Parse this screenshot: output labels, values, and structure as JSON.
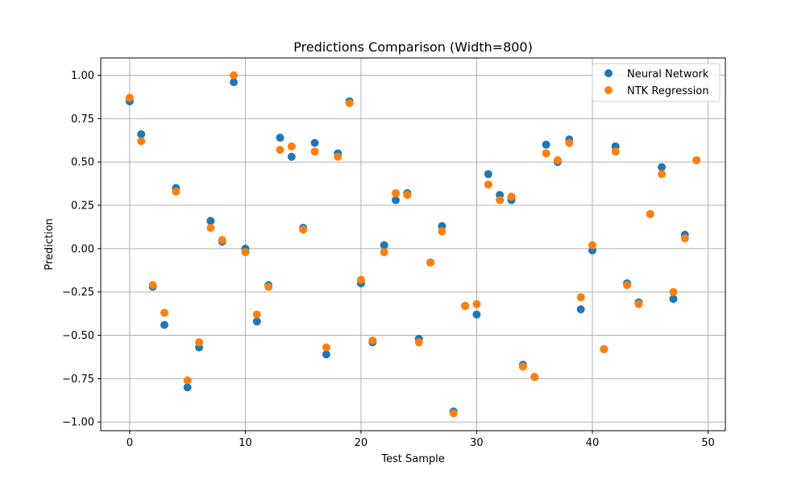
{
  "chart_data": {
    "type": "scatter",
    "title": "Predictions Comparison (Width=800)",
    "xlabel": "Test Sample",
    "ylabel": "Prediction",
    "xlim": [
      -2.5,
      51.5
    ],
    "ylim": [
      -1.05,
      1.1
    ],
    "xticks": [
      0,
      10,
      20,
      30,
      40,
      50
    ],
    "yticks": [
      -1.0,
      -0.75,
      -0.5,
      -0.25,
      0.0,
      0.25,
      0.5,
      0.75,
      1.0
    ],
    "ytick_labels": [
      "−1.00",
      "−0.75",
      "−0.50",
      "−0.25",
      "0.00",
      "0.25",
      "0.50",
      "0.75",
      "1.00"
    ],
    "grid": true,
    "legend_position": "top-right",
    "x": [
      0,
      1,
      2,
      3,
      4,
      5,
      6,
      7,
      8,
      9,
      10,
      11,
      12,
      13,
      14,
      15,
      16,
      17,
      18,
      19,
      20,
      21,
      22,
      23,
      24,
      25,
      26,
      27,
      28,
      29,
      30,
      31,
      32,
      33,
      34,
      35,
      36,
      37,
      38,
      39,
      40,
      41,
      42,
      43,
      44,
      45,
      46,
      47,
      48,
      49
    ],
    "series": [
      {
        "name": "Neural Network",
        "color": "#1f77b4",
        "values": [
          0.85,
          0.66,
          -0.22,
          -0.44,
          0.35,
          -0.8,
          -0.57,
          0.16,
          0.04,
          0.96,
          0.0,
          -0.42,
          -0.21,
          0.64,
          0.53,
          0.12,
          0.61,
          -0.61,
          0.55,
          0.85,
          -0.2,
          -0.54,
          0.02,
          0.28,
          0.32,
          -0.52,
          -0.08,
          0.13,
          -0.94,
          -0.33,
          -0.38,
          0.43,
          0.31,
          0.28,
          -0.67,
          -0.74,
          0.6,
          0.5,
          0.63,
          -0.35,
          -0.01,
          -0.58,
          0.59,
          -0.2,
          -0.31,
          0.2,
          0.47,
          -0.29,
          0.08,
          0.51
        ]
      },
      {
        "name": "NTK Regression",
        "color": "#ff7f0e",
        "values": [
          0.87,
          0.62,
          -0.21,
          -0.37,
          0.33,
          -0.76,
          -0.54,
          0.12,
          0.05,
          1.0,
          -0.02,
          -0.38,
          -0.22,
          0.57,
          0.59,
          0.11,
          0.56,
          -0.57,
          0.53,
          0.84,
          -0.18,
          -0.53,
          -0.02,
          0.32,
          0.31,
          -0.54,
          -0.08,
          0.1,
          -0.95,
          -0.33,
          -0.32,
          0.37,
          0.28,
          0.3,
          -0.68,
          -0.74,
          0.55,
          0.51,
          0.61,
          -0.28,
          0.02,
          -0.58,
          0.56,
          -0.21,
          -0.32,
          0.2,
          0.43,
          -0.25,
          0.06,
          0.51
        ]
      }
    ]
  }
}
